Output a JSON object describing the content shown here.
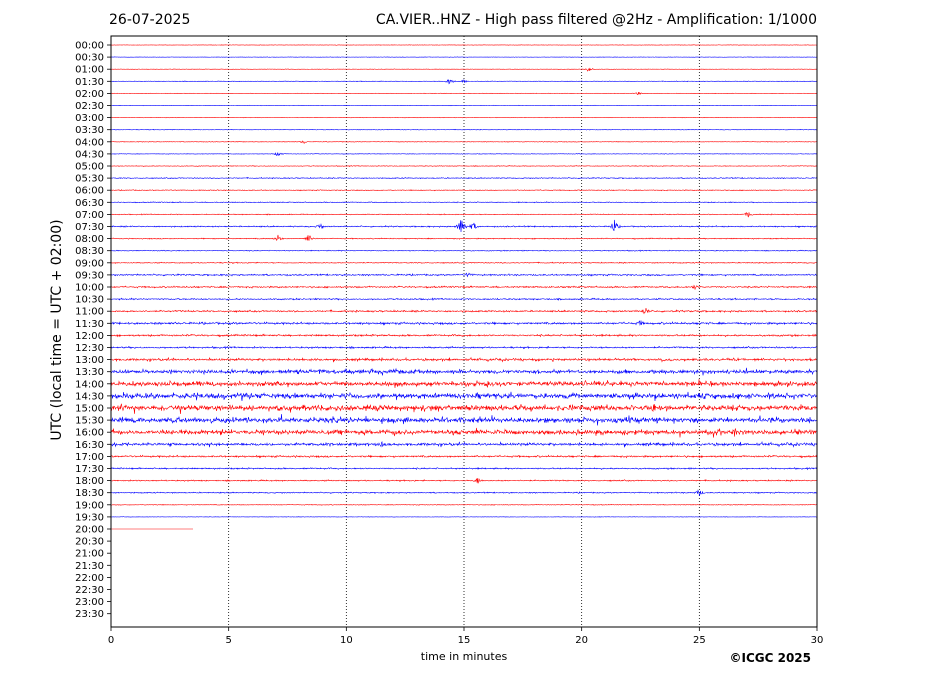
{
  "header": {
    "date": "26-07-2025",
    "title": "CA.VIER..HNZ - High pass filtered @2Hz - Amplification: 1/1000"
  },
  "footer": {
    "copyright": "©ICGC 2025"
  },
  "colors": {
    "odd_trace": "#ff0000",
    "even_trace": "#0000ff",
    "grid": "#000000"
  },
  "chart_data": {
    "type": "line",
    "subtype": "helicorder",
    "xlabel": "time in minutes",
    "ylabel": "UTC (local time = UTC + 02:00)",
    "xlim": [
      0,
      30
    ],
    "x_ticks": [
      0,
      5,
      10,
      15,
      20,
      25,
      30
    ],
    "grid": "vertical dotted lines at x ticks",
    "row_labels": [
      "00:00",
      "00:30",
      "01:00",
      "01:30",
      "02:00",
      "02:30",
      "03:00",
      "03:30",
      "04:00",
      "04:30",
      "05:00",
      "05:30",
      "06:00",
      "06:30",
      "07:00",
      "07:30",
      "08:00",
      "08:30",
      "09:00",
      "09:30",
      "10:00",
      "10:30",
      "11:00",
      "11:30",
      "12:00",
      "12:30",
      "13:00",
      "13:30",
      "14:00",
      "14:30",
      "15:00",
      "15:30",
      "16:00",
      "16:30",
      "17:00",
      "17:30",
      "18:00",
      "18:30",
      "19:00",
      "19:30",
      "20:00",
      "20:30",
      "21:00",
      "21:30",
      "22:00",
      "22:30",
      "23:00",
      "23:30"
    ],
    "trace_color_cycle": [
      "red",
      "blue"
    ],
    "last_trace_end_minute": 3.5,
    "noise_level": [
      0.3,
      0.3,
      0.3,
      0.4,
      0.3,
      0.3,
      0.3,
      0.4,
      0.4,
      0.4,
      0.5,
      0.7,
      0.6,
      0.6,
      0.6,
      0.9,
      0.7,
      0.6,
      0.7,
      1.1,
      1.1,
      1.0,
      1.2,
      1.5,
      1.3,
      1.2,
      1.6,
      2.6,
      3.1,
      3.6,
      3.8,
      3.5,
      3.2,
      1.9,
      1.3,
      1.0,
      0.9,
      0.8,
      0.5,
      0.3,
      0.0,
      0,
      0,
      0,
      0,
      0,
      0,
      0
    ],
    "events": [
      {
        "row": "01:00",
        "minute": 20.3,
        "amplitude": 3
      },
      {
        "row": "01:30",
        "minute": 14.4,
        "amplitude": 4
      },
      {
        "row": "01:30",
        "minute": 15.0,
        "amplitude": 2
      },
      {
        "row": "02:00",
        "minute": 22.4,
        "amplitude": 2
      },
      {
        "row": "04:00",
        "minute": 8.2,
        "amplitude": 2
      },
      {
        "row": "04:30",
        "minute": 7.1,
        "amplitude": 3
      },
      {
        "row": "07:00",
        "minute": 27.1,
        "amplitude": 4
      },
      {
        "row": "07:30",
        "minute": 14.9,
        "amplitude": 11
      },
      {
        "row": "07:30",
        "minute": 15.4,
        "amplitude": 5
      },
      {
        "row": "07:30",
        "minute": 21.4,
        "amplitude": 8
      },
      {
        "row": "07:30",
        "minute": 8.9,
        "amplitude": 4
      },
      {
        "row": "08:00",
        "minute": 7.1,
        "amplitude": 4
      },
      {
        "row": "08:00",
        "minute": 8.4,
        "amplitude": 5
      },
      {
        "row": "09:30",
        "minute": 15.2,
        "amplitude": 4
      },
      {
        "row": "10:00",
        "minute": 24.8,
        "amplitude": 3
      },
      {
        "row": "11:00",
        "minute": 22.7,
        "amplitude": 5
      },
      {
        "row": "11:30",
        "minute": 22.5,
        "amplitude": 4
      },
      {
        "row": "13:00",
        "minute": 8.8,
        "amplitude": 3
      },
      {
        "row": "13:30",
        "minute": 8.9,
        "amplitude": 4
      },
      {
        "row": "14:00",
        "minute": 16.0,
        "amplitude": 5
      },
      {
        "row": "15:00",
        "minute": 23.1,
        "amplitude": 6
      },
      {
        "row": "16:00",
        "minute": 26.5,
        "amplitude": 5
      },
      {
        "row": "16:30",
        "minute": 11.5,
        "amplitude": 4
      },
      {
        "row": "18:00",
        "minute": 15.6,
        "amplitude": 4
      },
      {
        "row": "18:30",
        "minute": 25.0,
        "amplitude": 4
      }
    ]
  }
}
